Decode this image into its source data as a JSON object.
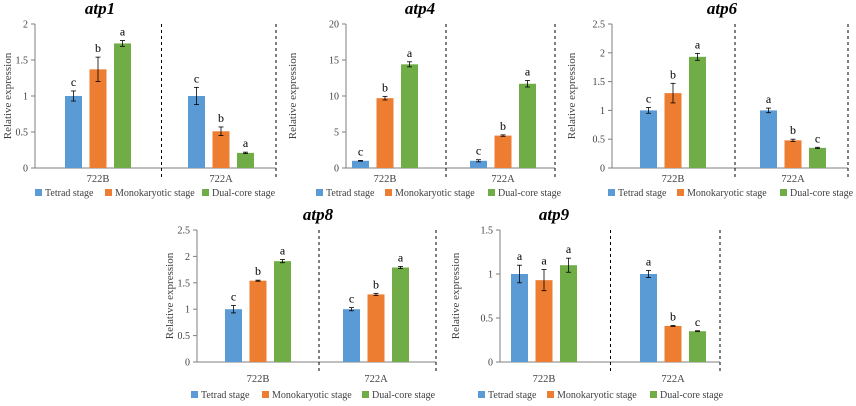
{
  "colors": {
    "tetrad": "#5B9BD5",
    "mono": "#ED7D31",
    "dual": "#70AD47",
    "axis": "#7f7f7f",
    "text": "#404040"
  },
  "chart_data": [
    {
      "type": "bar",
      "title": "atp1",
      "ylabel": "Relative expression",
      "ylim": [
        0,
        2
      ],
      "ytick_step": 0.5,
      "yticks": [
        "0",
        "0.5",
        "1",
        "1.5",
        "2"
      ],
      "categories": [
        "722B",
        "722A"
      ],
      "series": [
        {
          "name": "Tetrad stage",
          "values": [
            1.0,
            1.0
          ],
          "errors": [
            0.07,
            0.12
          ],
          "letters": [
            "c",
            "c"
          ]
        },
        {
          "name": "Monokaryotic stage",
          "values": [
            1.37,
            0.51
          ],
          "errors": [
            0.17,
            0.06
          ],
          "letters": [
            "b",
            "b"
          ]
        },
        {
          "name": "Dual-core stage",
          "values": [
            1.73,
            0.21
          ],
          "errors": [
            0.04,
            0.01
          ],
          "letters": [
            "a",
            "a"
          ]
        }
      ]
    },
    {
      "type": "bar",
      "title": "atp4",
      "ylabel": "Relative expression",
      "ylim": [
        0,
        20
      ],
      "ytick_step": 5,
      "yticks": [
        "0",
        "5",
        "10",
        "15",
        "20"
      ],
      "categories": [
        "722B",
        "722A"
      ],
      "series": [
        {
          "name": "Tetrad stage",
          "values": [
            1.0,
            1.0
          ],
          "errors": [
            0.05,
            0.15
          ],
          "letters": [
            "c",
            "c"
          ]
        },
        {
          "name": "Monokaryotic stage",
          "values": [
            9.7,
            4.5
          ],
          "errors": [
            0.25,
            0.1
          ],
          "letters": [
            "b",
            "b"
          ]
        },
        {
          "name": "Dual-core stage",
          "values": [
            14.4,
            11.7
          ],
          "errors": [
            0.35,
            0.45
          ],
          "letters": [
            "a",
            "a"
          ]
        }
      ]
    },
    {
      "type": "bar",
      "title": "atp6",
      "ylabel": "Relative expression",
      "ylim": [
        0,
        2.5
      ],
      "ytick_step": 0.5,
      "yticks": [
        "0",
        "0.5",
        "1",
        "1.5",
        "2",
        "2.5"
      ],
      "categories": [
        "722B",
        "722A"
      ],
      "series": [
        {
          "name": "Tetrad stage",
          "values": [
            1.0,
            1.0
          ],
          "errors": [
            0.05,
            0.04
          ],
          "letters": [
            "c",
            "a"
          ]
        },
        {
          "name": "Monokaryotic stage",
          "values": [
            1.3,
            0.48
          ],
          "errors": [
            0.17,
            0.02
          ],
          "letters": [
            "b",
            "b"
          ]
        },
        {
          "name": "Dual-core stage",
          "values": [
            1.93,
            0.35
          ],
          "errors": [
            0.06,
            0.01
          ],
          "letters": [
            "a",
            "c"
          ]
        }
      ]
    },
    {
      "type": "bar",
      "title": "atp8",
      "ylabel": "Relative expression",
      "ylim": [
        0,
        2.5
      ],
      "ytick_step": 0.5,
      "yticks": [
        "0",
        "0.5",
        "1",
        "1.5",
        "2",
        "2.5"
      ],
      "categories": [
        "722B",
        "722A"
      ],
      "series": [
        {
          "name": "Tetrad stage",
          "values": [
            1.0,
            1.0
          ],
          "errors": [
            0.07,
            0.03
          ],
          "letters": [
            "c",
            "c"
          ]
        },
        {
          "name": "Monokaryotic stage",
          "values": [
            1.54,
            1.28
          ],
          "errors": [
            0.01,
            0.02
          ],
          "letters": [
            "b",
            "b"
          ]
        },
        {
          "name": "Dual-core stage",
          "values": [
            1.91,
            1.79
          ],
          "errors": [
            0.03,
            0.02
          ],
          "letters": [
            "a",
            "a"
          ]
        }
      ]
    },
    {
      "type": "bar",
      "title": "atp9",
      "ylabel": "Relative expression",
      "ylim": [
        0,
        1.5
      ],
      "ytick_step": 0.5,
      "yticks": [
        "0",
        "0.5",
        "1",
        "1.5"
      ],
      "categories": [
        "722B",
        "722A"
      ],
      "series": [
        {
          "name": "Tetrad stage",
          "values": [
            1.0,
            1.0
          ],
          "errors": [
            0.1,
            0.04
          ],
          "letters": [
            "a",
            "a"
          ]
        },
        {
          "name": "Monokaryotic stage",
          "values": [
            0.93,
            0.41
          ],
          "errors": [
            0.12,
            0.005
          ],
          "letters": [
            "a",
            "b"
          ]
        },
        {
          "name": "Dual-core stage",
          "values": [
            1.1,
            0.35
          ],
          "errors": [
            0.08,
            0.005
          ],
          "letters": [
            "a",
            "c"
          ]
        }
      ]
    }
  ]
}
